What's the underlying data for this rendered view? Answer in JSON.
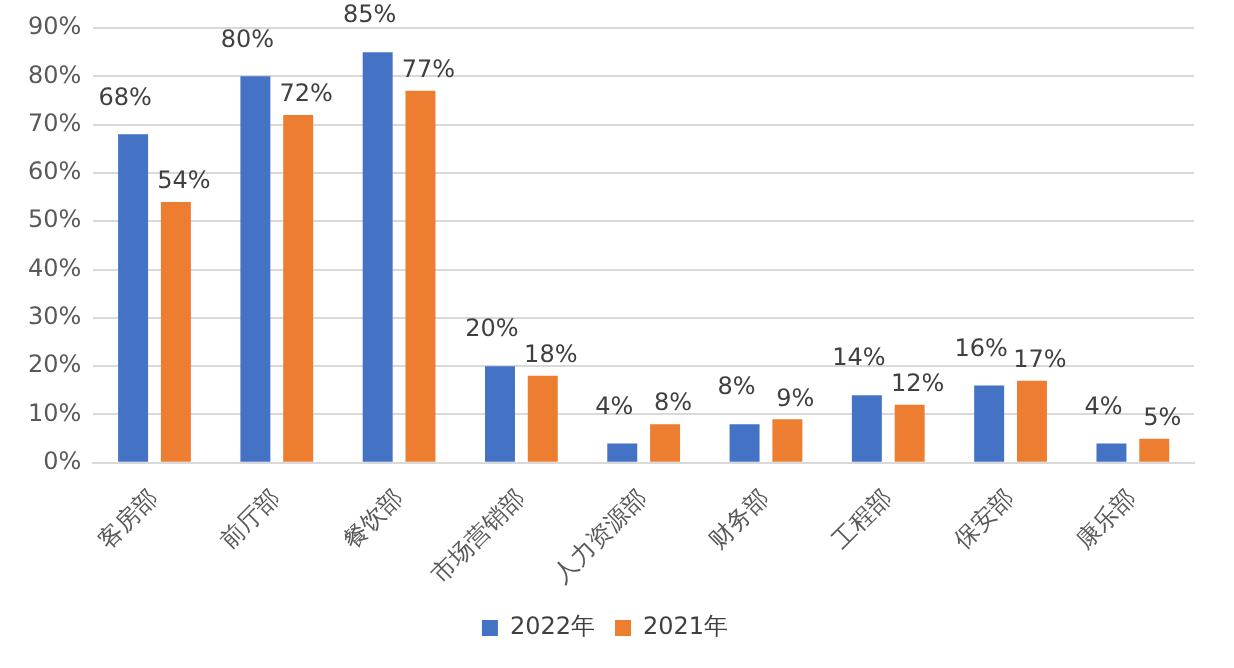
{
  "chart_data": {
    "type": "bar",
    "categories": [
      "客房部",
      "前厅部",
      "餐饮部",
      "市场营销部",
      "人力资源部",
      "财务部",
      "工程部",
      "保安部",
      "康乐部"
    ],
    "series": [
      {
        "name": "2022年",
        "color": "#4472c4",
        "values": [
          68,
          80,
          85,
          20,
          4,
          8,
          14,
          16,
          4
        ],
        "value_labels": [
          "68%",
          "80%",
          "85%",
          "20%",
          "4%",
          "8%",
          "14%",
          "16%",
          "4%"
        ]
      },
      {
        "name": "2021年",
        "color": "#ed7d31",
        "values": [
          54,
          72,
          77,
          18,
          8,
          9,
          12,
          17,
          5
        ],
        "value_labels": [
          "54%",
          "72%",
          "77%",
          "18%",
          "8%",
          "9%",
          "12%",
          "17%",
          "5%"
        ]
      }
    ],
    "ylim": [
      0,
      90
    ],
    "yticks": [
      {
        "value": 0,
        "label": "0%"
      },
      {
        "value": 10,
        "label": "10%"
      },
      {
        "value": 20,
        "label": "20%"
      },
      {
        "value": 30,
        "label": "30%"
      },
      {
        "value": 40,
        "label": "40%"
      },
      {
        "value": 50,
        "label": "50%"
      },
      {
        "value": 60,
        "label": "60%"
      },
      {
        "value": 70,
        "label": "70%"
      },
      {
        "value": 80,
        "label": "80%"
      },
      {
        "value": 90,
        "label": "90%"
      }
    ],
    "grid": "y",
    "legend": "bottom"
  }
}
